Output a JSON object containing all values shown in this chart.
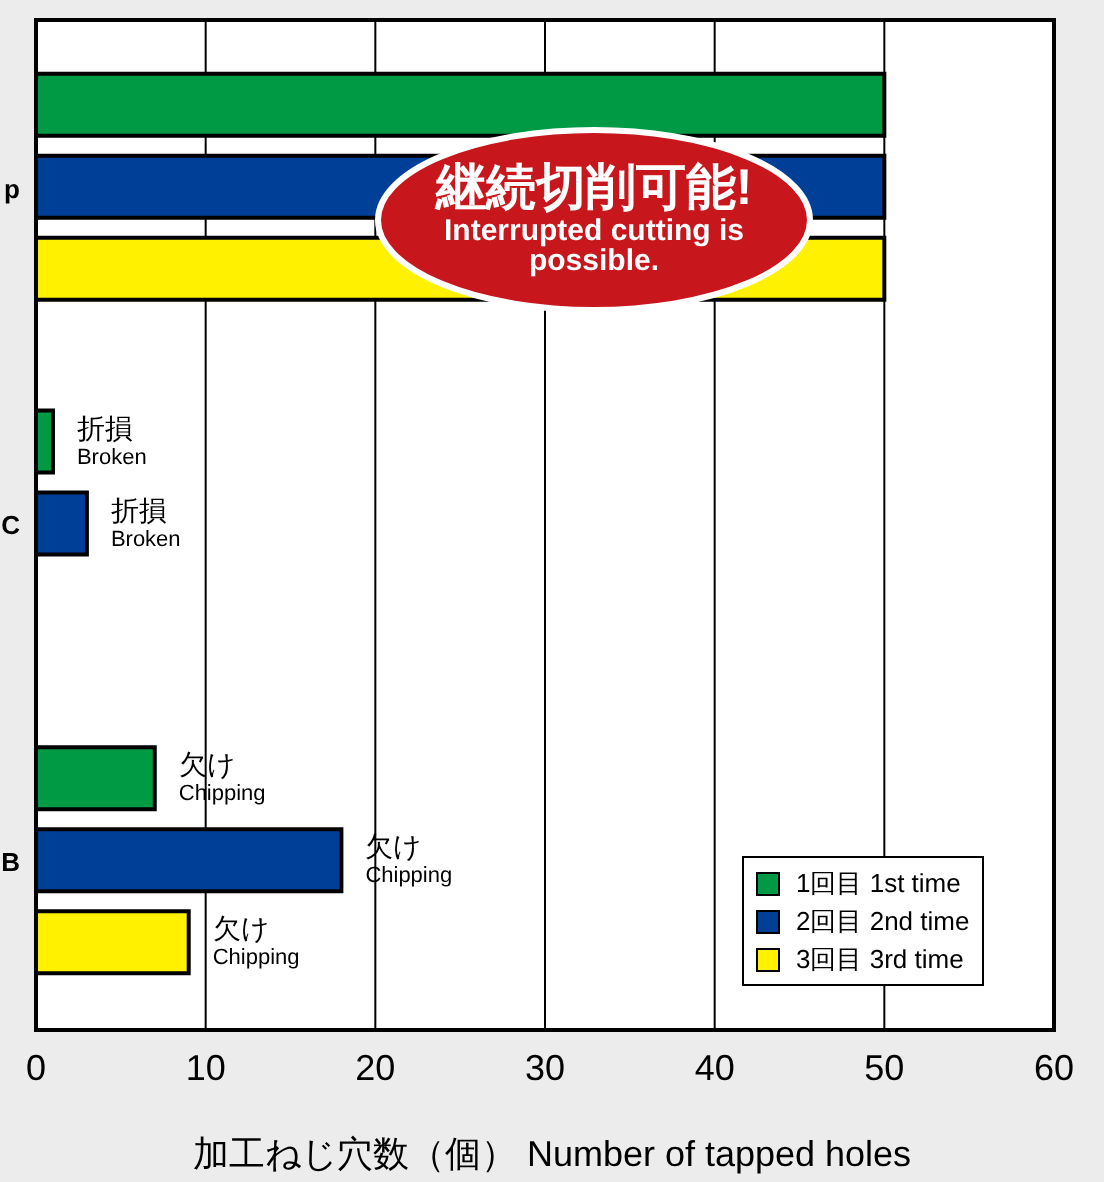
{
  "chart_data": {
    "type": "bar",
    "orientation": "horizontal",
    "categories": [
      "p",
      "C",
      "B"
    ],
    "series": [
      {
        "name": "1回目 1st time",
        "color": "#009944",
        "values": [
          50,
          1,
          7
        ]
      },
      {
        "name": "2回目 2nd time",
        "color": "#003f98",
        "values": [
          50,
          3,
          18
        ]
      },
      {
        "name": "3回目 3rd time",
        "color": "#fff100",
        "values": [
          50,
          null,
          9
        ]
      }
    ],
    "xlabel": "加工ねじ穴数（個） Number of tapped holes",
    "xlim": [
      0,
      60
    ],
    "xticks": [
      0,
      10,
      20,
      30,
      40,
      50,
      60
    ],
    "grid": "x",
    "legend": "bottom right",
    "annotations": [
      {
        "text": "折損\nBroken",
        "x": 1
      },
      {
        "text": "折損\nBroken",
        "x": 3
      },
      {
        "text": "欠け\nChipping",
        "x": 7
      },
      {
        "text": "欠け\nChipping",
        "x": 18
      },
      {
        "text": "欠け\nChipping",
        "x": 9
      },
      "継続切削可能!\nInterrupted cutting is possible."
    ]
  }
}
